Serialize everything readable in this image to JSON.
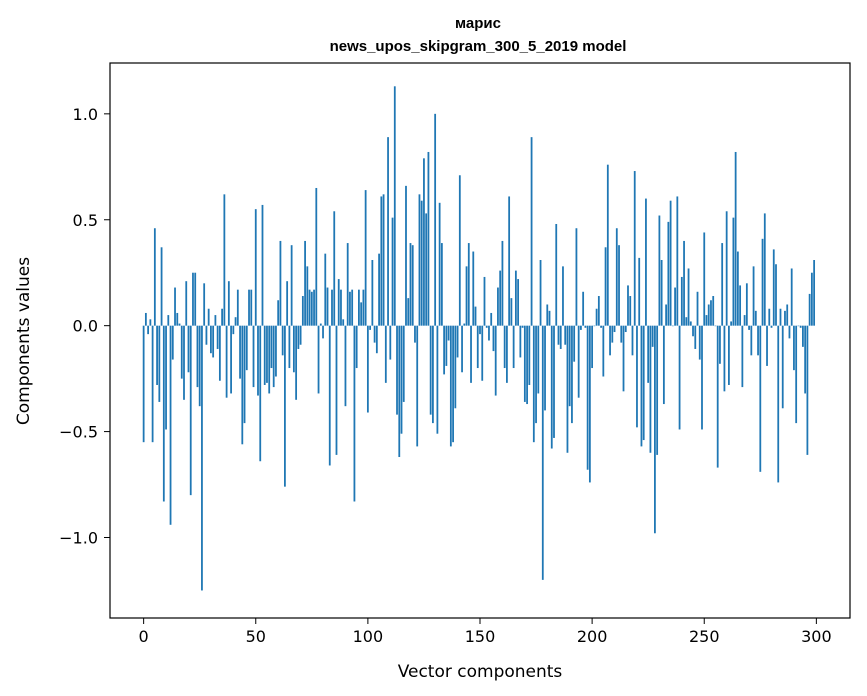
{
  "chart_data": {
    "type": "bar",
    "title": "марис",
    "subtitle": "news_upos_skipgram_300_5_2019 model",
    "xlabel": "Vector components",
    "ylabel": "Components values",
    "xlim": [
      -15,
      315
    ],
    "ylim": [
      -1.38,
      1.24
    ],
    "xticks": [
      0,
      50,
      100,
      150,
      200,
      250,
      300
    ],
    "yticks": [
      -1.0,
      -0.5,
      0.0,
      0.5,
      1.0
    ],
    "xtick_labels": [
      "0",
      "50",
      "100",
      "150",
      "200",
      "250",
      "300"
    ],
    "ytick_labels": [
      "−1.0",
      "−0.5",
      "0.0",
      "0.5",
      "1.0"
    ],
    "color": "#1f77b4",
    "grid": false,
    "values": [
      -0.55,
      0.06,
      -0.04,
      0.03,
      -0.55,
      0.46,
      -0.28,
      -0.36,
      0.37,
      -0.83,
      -0.49,
      0.05,
      -0.94,
      -0.16,
      0.18,
      0.06,
      0.01,
      -0.25,
      -0.35,
      0.21,
      -0.22,
      -0.8,
      0.25,
      0.25,
      -0.29,
      -0.38,
      -1.25,
      0.2,
      -0.09,
      0.08,
      -0.13,
      -0.15,
      0.05,
      -0.11,
      -0.26,
      0.08,
      0.62,
      -0.34,
      0.21,
      -0.32,
      -0.04,
      0.04,
      0.17,
      -0.25,
      -0.56,
      -0.46,
      -0.21,
      0.17,
      0.17,
      -0.29,
      0.55,
      -0.33,
      -0.64,
      0.57,
      -0.28,
      -0.27,
      -0.32,
      -0.2,
      -0.29,
      -0.24,
      0.12,
      0.4,
      -0.14,
      -0.76,
      0.21,
      -0.2,
      0.38,
      -0.22,
      -0.35,
      -0.11,
      -0.09,
      0.14,
      0.4,
      0.28,
      0.17,
      0.16,
      0.17,
      0.65,
      -0.32,
      0.01,
      -0.06,
      0.34,
      0.18,
      -0.66,
      0.17,
      0.54,
      -0.61,
      0.22,
      0.17,
      0.03,
      -0.38,
      0.39,
      0.16,
      0.17,
      -0.83,
      -0.2,
      0.17,
      0.11,
      0.17,
      0.64,
      -0.41,
      -0.02,
      0.31,
      -0.08,
      -0.13,
      0.34,
      0.61,
      0.62,
      -0.27,
      0.89,
      -0.16,
      0.51,
      1.13,
      -0.42,
      -0.62,
      -0.51,
      -0.36,
      0.66,
      0.13,
      0.39,
      0.38,
      -0.08,
      -0.57,
      0.62,
      0.59,
      0.79,
      0.53,
      0.82,
      -0.42,
      -0.46,
      1.0,
      -0.51,
      0.58,
      0.39,
      -0.23,
      -0.19,
      -0.07,
      -0.57,
      -0.55,
      -0.39,
      -0.15,
      0.71,
      -0.22,
      0.01,
      0.28,
      0.39,
      -0.27,
      0.35,
      0.09,
      -0.2,
      -0.04,
      -0.26,
      0.23,
      -0.01,
      -0.07,
      0.06,
      -0.12,
      -0.33,
      0.18,
      0.26,
      0.4,
      -0.2,
      -0.27,
      0.61,
      0.13,
      -0.2,
      0.26,
      0.22,
      -0.15,
      -0.01,
      -0.36,
      -0.37,
      -0.28,
      0.89,
      -0.55,
      -0.46,
      -0.32,
      0.31,
      -1.2,
      -0.4,
      0.1,
      0.07,
      -0.58,
      -0.53,
      0.48,
      -0.09,
      -0.11,
      0.28,
      -0.09,
      -0.6,
      -0.38,
      -0.46,
      -0.17,
      0.46,
      -0.34,
      -0.02,
      0.16,
      -0.01,
      -0.68,
      -0.74,
      -0.2,
      0.0,
      0.08,
      0.14,
      -0.01,
      -0.24,
      0.37,
      0.76,
      -0.14,
      -0.08,
      -0.03,
      0.46,
      0.38,
      -0.08,
      -0.31,
      -0.03,
      0.19,
      0.14,
      -0.14,
      0.73,
      -0.48,
      0.32,
      -0.57,
      -0.54,
      0.6,
      -0.27,
      -0.6,
      -0.1,
      -0.98,
      -0.61,
      0.52,
      0.31,
      -0.37,
      0.1,
      0.49,
      0.59,
      0.0,
      0.18,
      0.61,
      -0.49,
      0.23,
      0.4,
      0.04,
      0.27,
      0.02,
      -0.05,
      -0.11,
      0.16,
      -0.16,
      -0.49,
      0.44,
      0.05,
      0.1,
      0.12,
      0.14,
      0.0,
      -0.67,
      -0.18,
      0.39,
      -0.31,
      0.54,
      -0.28,
      0.02,
      0.51,
      0.82,
      0.35,
      0.19,
      -0.29,
      0.05,
      0.2,
      -0.02,
      -0.14,
      0.28,
      0.07,
      -0.14,
      -0.69,
      0.41,
      0.53,
      -0.19,
      0.08,
      -0.01,
      0.36,
      0.29,
      -0.74,
      0.08,
      -0.39,
      0.07,
      0.1,
      -0.06,
      0.27,
      -0.21,
      -0.46,
      0.0,
      -0.01,
      -0.1,
      -0.32,
      -0.61,
      0.15,
      0.25,
      0.31
    ]
  }
}
